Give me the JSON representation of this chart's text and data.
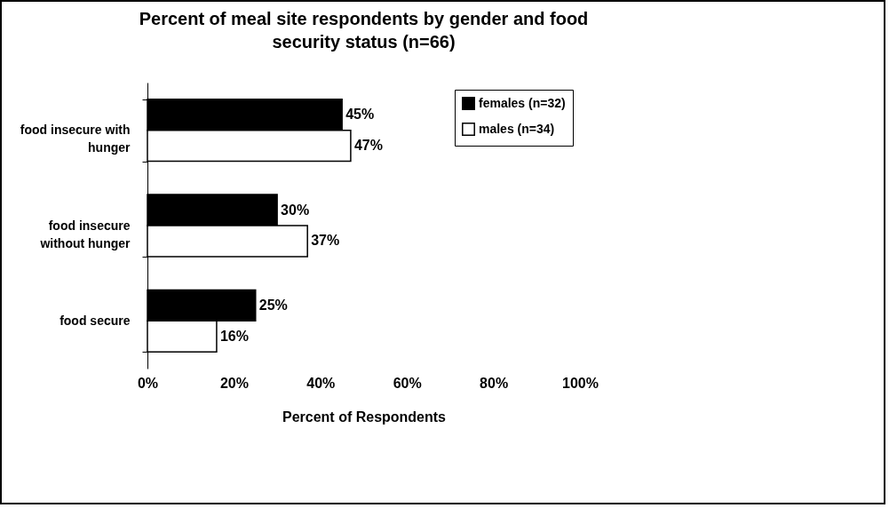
{
  "chart_data": {
    "type": "bar",
    "orientation": "horizontal",
    "title": "Percent of meal site respondents by gender and food security status (n=66)",
    "xlabel": "Percent of Respondents",
    "categories": [
      "food insecure with hunger",
      "food insecure without hunger",
      "food secure"
    ],
    "series": [
      {
        "name": "females (n=32)",
        "color": "#000000",
        "values": [
          45,
          30,
          25
        ],
        "value_labels": [
          "45%",
          "30%",
          "25%"
        ]
      },
      {
        "name": "males (n=34)",
        "color": "#ffffff",
        "values": [
          47,
          37,
          16
        ],
        "value_labels": [
          "47%",
          "37%",
          "16%"
        ]
      }
    ],
    "xlim": [
      0,
      100
    ],
    "xticks": [
      {
        "value": 0,
        "label": "0%"
      },
      {
        "value": 20,
        "label": "20%"
      },
      {
        "value": 40,
        "label": "40%"
      },
      {
        "value": 60,
        "label": "60%"
      },
      {
        "value": 80,
        "label": "80%"
      },
      {
        "value": 100,
        "label": "100%"
      }
    ],
    "grid": false,
    "legend": "top right"
  }
}
